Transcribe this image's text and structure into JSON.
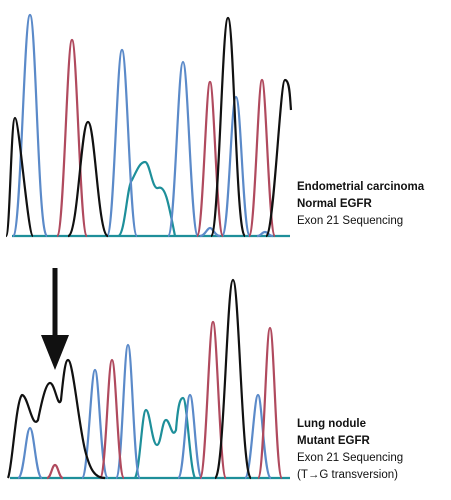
{
  "panels": [
    {
      "lines": [
        "Endometrial carcinoma",
        "Normal EGFR",
        "Exon 21 Sequencing"
      ]
    },
    {
      "lines": [
        "Lung nodule",
        "Mutant EGFR",
        "Exon 21 Sequencing",
        "(T→G transversion)"
      ]
    }
  ]
}
